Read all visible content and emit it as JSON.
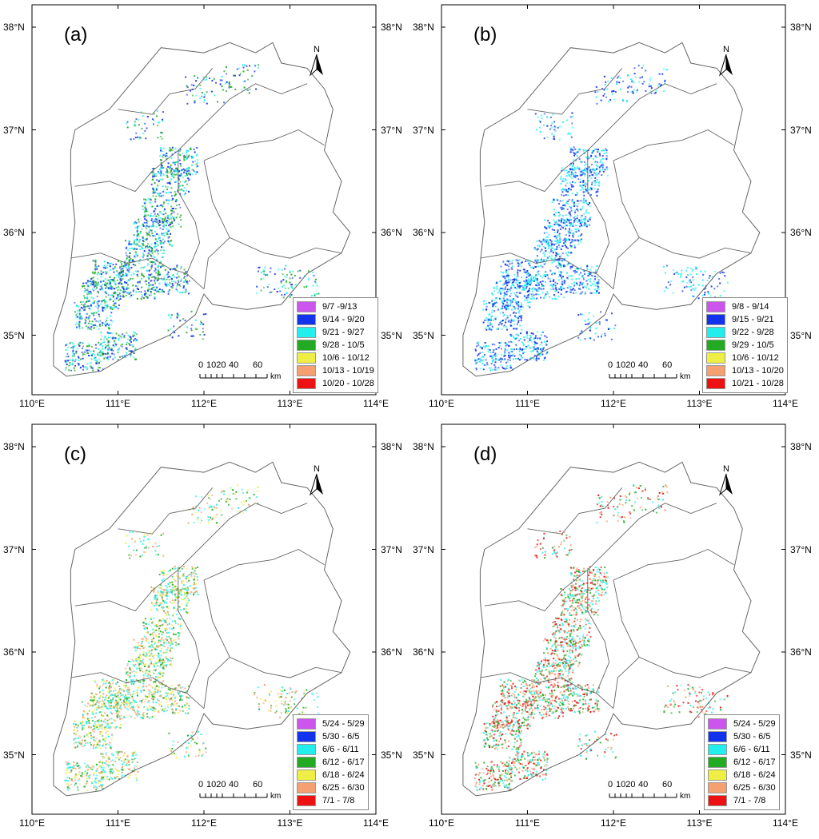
{
  "colors": {
    "border": "#666666",
    "frame": "#000000",
    "classes": [
      "#CC55EE",
      "#1133EE",
      "#22EEEE",
      "#22AA22",
      "#EEEE44",
      "#F4A070",
      "#EE1111"
    ]
  },
  "axes": {
    "lon_labels": [
      "110°E",
      "111°E",
      "112°E",
      "113°E",
      "114°E"
    ],
    "lat_labels": [
      "38°N",
      "37°N",
      "36°N",
      "35°N"
    ],
    "right_lat_labels": [
      "38°N",
      "37°N",
      "36°N",
      "35°N"
    ]
  },
  "north_arrow": {
    "letter": "N",
    "icon": "north-arrow-icon"
  },
  "scale_bar": {
    "ticks": [
      "0",
      "1020",
      "40",
      "60"
    ],
    "unit": "km"
  },
  "panels": [
    {
      "tag": "(a)",
      "legend": [
        "9/7 -9/13",
        "9/14 - 9/20",
        "9/21 - 9/27",
        "9/28 - 10/5",
        "10/6 - 10/12",
        "10/13 - 10/19",
        "10/20 - 10/28"
      ],
      "dominant_classes": [
        1,
        2,
        3
      ]
    },
    {
      "tag": "(b)",
      "legend": [
        "9/8 - 9/14",
        "9/15 - 9/21",
        "9/22 - 9/28",
        "9/29 - 10/5",
        "10/6 - 10/12",
        "10/13 - 10/20",
        "10/21 - 10/28"
      ],
      "dominant_classes": [
        1,
        2
      ]
    },
    {
      "tag": "(c)",
      "legend": [
        "5/24 - 5/29",
        "5/30 - 6/5",
        "6/6 - 6/11",
        "6/12 - 6/17",
        "6/18 - 6/24",
        "6/25 - 6/30",
        "7/1 - 7/8"
      ],
      "dominant_classes": [
        2,
        3,
        4,
        5
      ]
    },
    {
      "tag": "(d)",
      "legend": [
        "5/24 - 5/29",
        "5/30 - 6/5",
        "6/6 - 6/11",
        "6/12 - 6/17",
        "6/18 - 6/24",
        "6/25 - 6/30",
        "7/1 - 7/8"
      ],
      "dominant_classes": [
        3,
        5,
        6,
        2
      ]
    }
  ]
}
